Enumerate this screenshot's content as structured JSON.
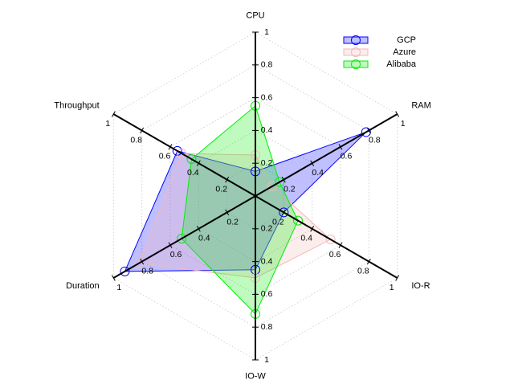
{
  "chart_data": {
    "type": "radar",
    "axes": [
      "CPU",
      "RAM",
      "IO-R",
      "IO-W",
      "Duration",
      "Throughput"
    ],
    "range": [
      0,
      1
    ],
    "ticks": [
      "0.2",
      "0.4",
      "0.6",
      "0.8",
      "1"
    ],
    "grid": true,
    "legend_position": "top-right",
    "series": [
      {
        "name": "GCP",
        "color": "#0000ff",
        "values": [
          0.15,
          0.78,
          0.2,
          0.45,
          0.92,
          0.55
        ]
      },
      {
        "name": "Azure",
        "color": "#f5b7b7",
        "values": [
          0.25,
          0.12,
          0.53,
          0.5,
          0.82,
          0.52
        ]
      },
      {
        "name": "Alibaba",
        "color": "#00ee00",
        "values": [
          0.55,
          0.17,
          0.3,
          0.72,
          0.52,
          0.45
        ]
      }
    ]
  }
}
